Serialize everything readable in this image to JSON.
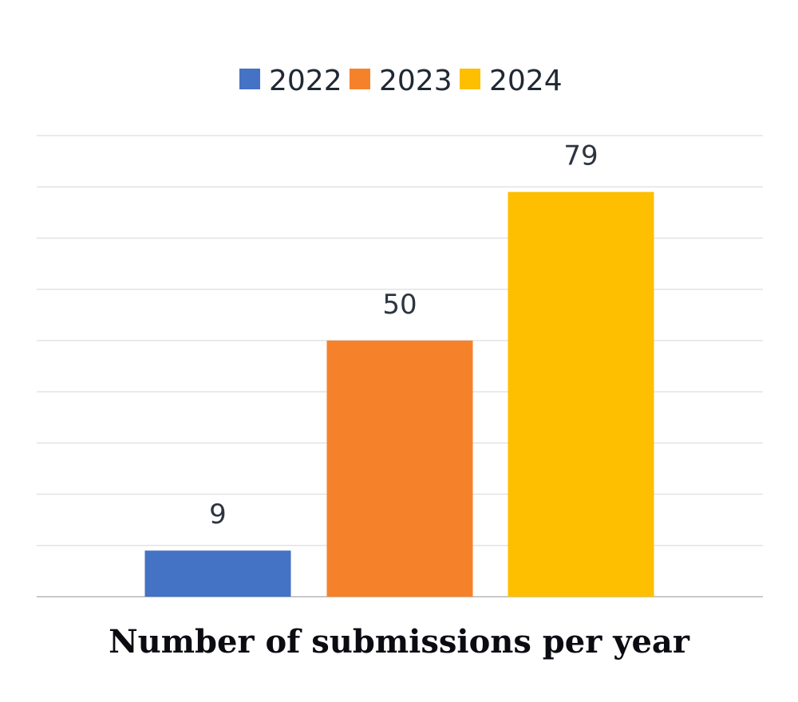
{
  "chart_data": {
    "type": "bar",
    "categories": [
      "2022",
      "2023",
      "2024"
    ],
    "values": [
      9,
      50,
      79
    ],
    "colors": [
      "#4472c4",
      "#f5822b",
      "#fdbf00"
    ],
    "legend_position": "top",
    "title": "Number of submissions per year",
    "ylim": [
      0,
      90
    ],
    "grid": true
  }
}
